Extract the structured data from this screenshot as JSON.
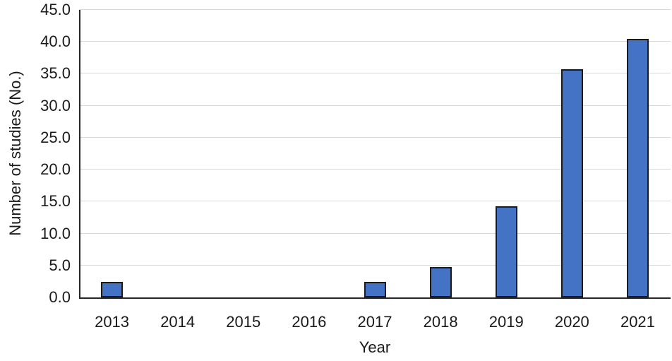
{
  "chart_data": {
    "type": "bar",
    "title": "",
    "xlabel": "Year",
    "ylabel": "Number of studies (No.)",
    "categories": [
      "2013",
      "2014",
      "2015",
      "2016",
      "2017",
      "2018",
      "2019",
      "2020",
      "2021"
    ],
    "values": [
      2.4,
      0,
      0,
      0,
      2.4,
      4.8,
      14.3,
      35.7,
      40.5
    ],
    "ylim": [
      0,
      45
    ],
    "ytick_step": 5,
    "ytick_labels": [
      "0.0",
      "5.0",
      "10.0",
      "15.0",
      "20.0",
      "25.0",
      "30.0",
      "35.0",
      "40.0",
      "45.0"
    ],
    "grid": true,
    "legend": "none",
    "colors": {
      "bar_fill": "#4472C4",
      "bar_border": "#1a1a1a",
      "gridline": "#d9d9d9",
      "axis_line": "#262626",
      "text": "#1a1a1a",
      "background": "#ffffff"
    }
  }
}
